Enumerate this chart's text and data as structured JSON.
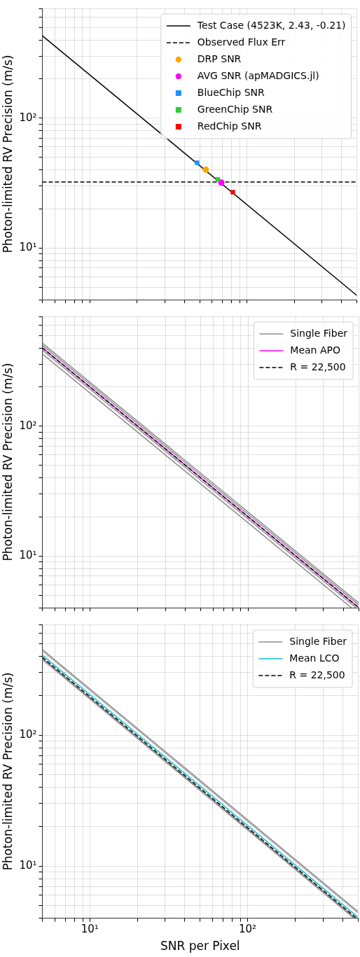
{
  "chart_data": [
    {
      "type": "line",
      "ylabel": "Photon-limited RV Precision (m/s)",
      "log": "xy",
      "grid": true,
      "legend": "top right",
      "tick_labels": "y",
      "xlim": [
        5,
        500
      ],
      "ylim": [
        4,
        700
      ],
      "xticks": [
        {
          "value": 5,
          "label": null
        },
        {
          "value": 6,
          "label": null
        },
        {
          "value": 7,
          "label": null
        },
        {
          "value": 8,
          "label": null
        },
        {
          "value": 9,
          "label": null
        },
        {
          "value": 10,
          "label": null
        },
        {
          "value": 20,
          "label": null
        },
        {
          "value": 30,
          "label": null
        },
        {
          "value": 40,
          "label": null
        },
        {
          "value": 50,
          "label": null
        },
        {
          "value": 60,
          "label": null
        },
        {
          "value": 70,
          "label": null
        },
        {
          "value": 80,
          "label": null
        },
        {
          "value": 90,
          "label": null
        },
        {
          "value": 100,
          "label": null
        },
        {
          "value": 200,
          "label": null
        },
        {
          "value": 300,
          "label": null
        },
        {
          "value": 400,
          "label": null
        },
        {
          "value": 500,
          "label": null
        }
      ],
      "yticks": [
        {
          "value": 4,
          "label": null
        },
        {
          "value": 5,
          "label": null
        },
        {
          "value": 6,
          "label": null
        },
        {
          "value": 7,
          "label": null
        },
        {
          "value": 8,
          "label": null
        },
        {
          "value": 9,
          "label": null
        },
        {
          "value": 10,
          "label": "10¹"
        },
        {
          "value": 20,
          "label": null
        },
        {
          "value": 30,
          "label": null
        },
        {
          "value": 40,
          "label": null
        },
        {
          "value": 50,
          "label": null
        },
        {
          "value": 60,
          "label": null
        },
        {
          "value": 70,
          "label": null
        },
        {
          "value": 80,
          "label": null
        },
        {
          "value": 90,
          "label": null
        },
        {
          "value": 100,
          "label": "10²"
        },
        {
          "value": 200,
          "label": null
        },
        {
          "value": 300,
          "label": null
        },
        {
          "value": 400,
          "label": null
        },
        {
          "value": 500,
          "label": null
        },
        {
          "value": 600,
          "label": null
        },
        {
          "value": 700,
          "label": null
        }
      ],
      "series": [
        {
          "type": "line",
          "name": "Test Case (4523K, 2.43, -0.21)",
          "color": "#000000",
          "line_style": "solid",
          "x": [
            5,
            500
          ],
          "values": [
            431,
            4.31
          ]
        },
        {
          "type": "line",
          "name": "Observed Flux Err",
          "color": "#000000",
          "line_style": "dashed",
          "x": [
            5,
            500
          ],
          "values": [
            32.2,
            32.2
          ]
        },
        {
          "type": "scatter",
          "name": "DRP SNR",
          "color": "#ffa500",
          "marker": "circle",
          "x": [
            54.7
          ],
          "values": [
            40.1
          ]
        },
        {
          "type": "scatter",
          "name": "AVG SNR (apMADGICS.jl)",
          "color": "#ff00ff",
          "marker": "circle",
          "x": [
            68.7
          ],
          "values": [
            31.9
          ]
        },
        {
          "type": "scatter",
          "name": "BlueChip SNR",
          "color": "#1e90ff",
          "marker": "square",
          "x": [
            48.2
          ],
          "values": [
            45.3
          ]
        },
        {
          "type": "scatter",
          "name": "GreenChip SNR",
          "color": "#32cd32",
          "marker": "square",
          "x": [
            65.2
          ],
          "values": [
            33.8
          ]
        },
        {
          "type": "scatter",
          "name": "RedChip SNR",
          "color": "#ff0000",
          "marker": "square",
          "x": [
            81.3
          ],
          "values": [
            26.9
          ]
        }
      ]
    },
    {
      "type": "line",
      "ylabel": "Photon-limited RV Precision (m/s)",
      "log": "xy",
      "grid": true,
      "legend": "top right",
      "tick_labels": "y",
      "xlim": [
        5,
        500
      ],
      "ylim": [
        4,
        700
      ],
      "xticks": [
        {
          "value": 5,
          "label": null
        },
        {
          "value": 6,
          "label": null
        },
        {
          "value": 7,
          "label": null
        },
        {
          "value": 8,
          "label": null
        },
        {
          "value": 9,
          "label": null
        },
        {
          "value": 10,
          "label": null
        },
        {
          "value": 20,
          "label": null
        },
        {
          "value": 30,
          "label": null
        },
        {
          "value": 40,
          "label": null
        },
        {
          "value": 50,
          "label": null
        },
        {
          "value": 60,
          "label": null
        },
        {
          "value": 70,
          "label": null
        },
        {
          "value": 80,
          "label": null
        },
        {
          "value": 90,
          "label": null
        },
        {
          "value": 100,
          "label": null
        },
        {
          "value": 200,
          "label": null
        },
        {
          "value": 300,
          "label": null
        },
        {
          "value": 400,
          "label": null
        },
        {
          "value": 500,
          "label": null
        }
      ],
      "yticks": [
        {
          "value": 4,
          "label": null
        },
        {
          "value": 5,
          "label": null
        },
        {
          "value": 6,
          "label": null
        },
        {
          "value": 7,
          "label": null
        },
        {
          "value": 8,
          "label": null
        },
        {
          "value": 9,
          "label": null
        },
        {
          "value": 10,
          "label": "10¹"
        },
        {
          "value": 20,
          "label": null
        },
        {
          "value": 30,
          "label": null
        },
        {
          "value": 40,
          "label": null
        },
        {
          "value": 50,
          "label": null
        },
        {
          "value": 60,
          "label": null
        },
        {
          "value": 70,
          "label": null
        },
        {
          "value": 80,
          "label": null
        },
        {
          "value": 90,
          "label": null
        },
        {
          "value": 100,
          "label": "10²"
        },
        {
          "value": 200,
          "label": null
        },
        {
          "value": 300,
          "label": null
        },
        {
          "value": 400,
          "label": null
        },
        {
          "value": 500,
          "label": null
        },
        {
          "value": 600,
          "label": null
        },
        {
          "value": 700,
          "label": null
        }
      ],
      "series": [
        {
          "type": "line",
          "name": "Single Fiber",
          "color": "#8c8c8c",
          "line_style": "solid",
          "x": [
            5,
            500
          ],
          "values": [
            436,
            4.36
          ]
        },
        {
          "type": "line",
          "color": "#8c8c8c",
          "line_style": "solid",
          "x": [
            5,
            500
          ],
          "values": [
            420,
            4.2
          ]
        },
        {
          "type": "line",
          "color": "#8c8c8c",
          "line_style": "solid",
          "x": [
            5,
            480
          ],
          "values": [
            385,
            4.01
          ]
        },
        {
          "type": "line",
          "color": "#8c8c8c",
          "line_style": "solid",
          "x": [
            5,
            450
          ],
          "values": [
            360,
            4.0
          ]
        },
        {
          "type": "line",
          "name": "Mean APO",
          "color": "#ff00ff",
          "line_style": "solid",
          "x": [
            5,
            500
          ],
          "values": [
            401,
            4.01
          ]
        },
        {
          "type": "line",
          "name": "R = 22,500",
          "color": "#000000",
          "line_style": "dashed",
          "x": [
            5,
            500
          ],
          "values": [
            401,
            4.01
          ]
        }
      ]
    },
    {
      "type": "line",
      "xlabel": "SNR per Pixel",
      "ylabel": "Photon-limited RV Precision (m/s)",
      "log": "xy",
      "grid": true,
      "legend": "top right",
      "xlim": [
        5,
        500
      ],
      "ylim": [
        4,
        700
      ],
      "xticks": [
        {
          "value": 5,
          "label": null
        },
        {
          "value": 6,
          "label": null
        },
        {
          "value": 7,
          "label": null
        },
        {
          "value": 8,
          "label": null
        },
        {
          "value": 9,
          "label": null
        },
        {
          "value": 10,
          "label": "10¹"
        },
        {
          "value": 20,
          "label": null
        },
        {
          "value": 30,
          "label": null
        },
        {
          "value": 40,
          "label": null
        },
        {
          "value": 50,
          "label": null
        },
        {
          "value": 60,
          "label": null
        },
        {
          "value": 70,
          "label": null
        },
        {
          "value": 80,
          "label": null
        },
        {
          "value": 90,
          "label": null
        },
        {
          "value": 100,
          "label": "10²"
        },
        {
          "value": 200,
          "label": null
        },
        {
          "value": 300,
          "label": null
        },
        {
          "value": 400,
          "label": null
        },
        {
          "value": 500,
          "label": null
        }
      ],
      "yticks": [
        {
          "value": 4,
          "label": null
        },
        {
          "value": 5,
          "label": null
        },
        {
          "value": 6,
          "label": null
        },
        {
          "value": 7,
          "label": null
        },
        {
          "value": 8,
          "label": null
        },
        {
          "value": 9,
          "label": null
        },
        {
          "value": 10,
          "label": "10¹"
        },
        {
          "value": 20,
          "label": null
        },
        {
          "value": 30,
          "label": null
        },
        {
          "value": 40,
          "label": null
        },
        {
          "value": 50,
          "label": null
        },
        {
          "value": 60,
          "label": null
        },
        {
          "value": 70,
          "label": null
        },
        {
          "value": 80,
          "label": null
        },
        {
          "value": 90,
          "label": null
        },
        {
          "value": 100,
          "label": "10²"
        },
        {
          "value": 200,
          "label": null
        },
        {
          "value": 300,
          "label": null
        },
        {
          "value": 400,
          "label": null
        },
        {
          "value": 500,
          "label": null
        },
        {
          "value": 600,
          "label": null
        },
        {
          "value": 700,
          "label": null
        }
      ],
      "series": [
        {
          "type": "line",
          "name": "Single Fiber",
          "color": "#8c8c8c",
          "line_style": "solid",
          "x": [
            5,
            500
          ],
          "values": [
            450,
            4.5
          ]
        },
        {
          "type": "line",
          "color": "#b0b0b0",
          "line_style": "solid",
          "x": [
            5,
            500
          ],
          "values": [
            440,
            4.4
          ]
        },
        {
          "type": "line",
          "color": "#8c8c8c",
          "line_style": "solid",
          "x": [
            5,
            480
          ],
          "values": [
            385,
            4.01
          ]
        },
        {
          "type": "line",
          "color": "#8c8c8c",
          "line_style": "solid",
          "x": [
            5,
            470
          ],
          "values": [
            378,
            4.02
          ]
        },
        {
          "type": "line",
          "name": "Mean LCO",
          "color": "#17becf",
          "line_style": "solid",
          "x": [
            5,
            500
          ],
          "values": [
            408,
            4.08
          ]
        },
        {
          "type": "line",
          "name": "R = 22,500",
          "color": "#000000",
          "line_style": "dashed",
          "x": [
            5,
            490
          ],
          "values": [
            393,
            4.01
          ]
        }
      ]
    }
  ]
}
